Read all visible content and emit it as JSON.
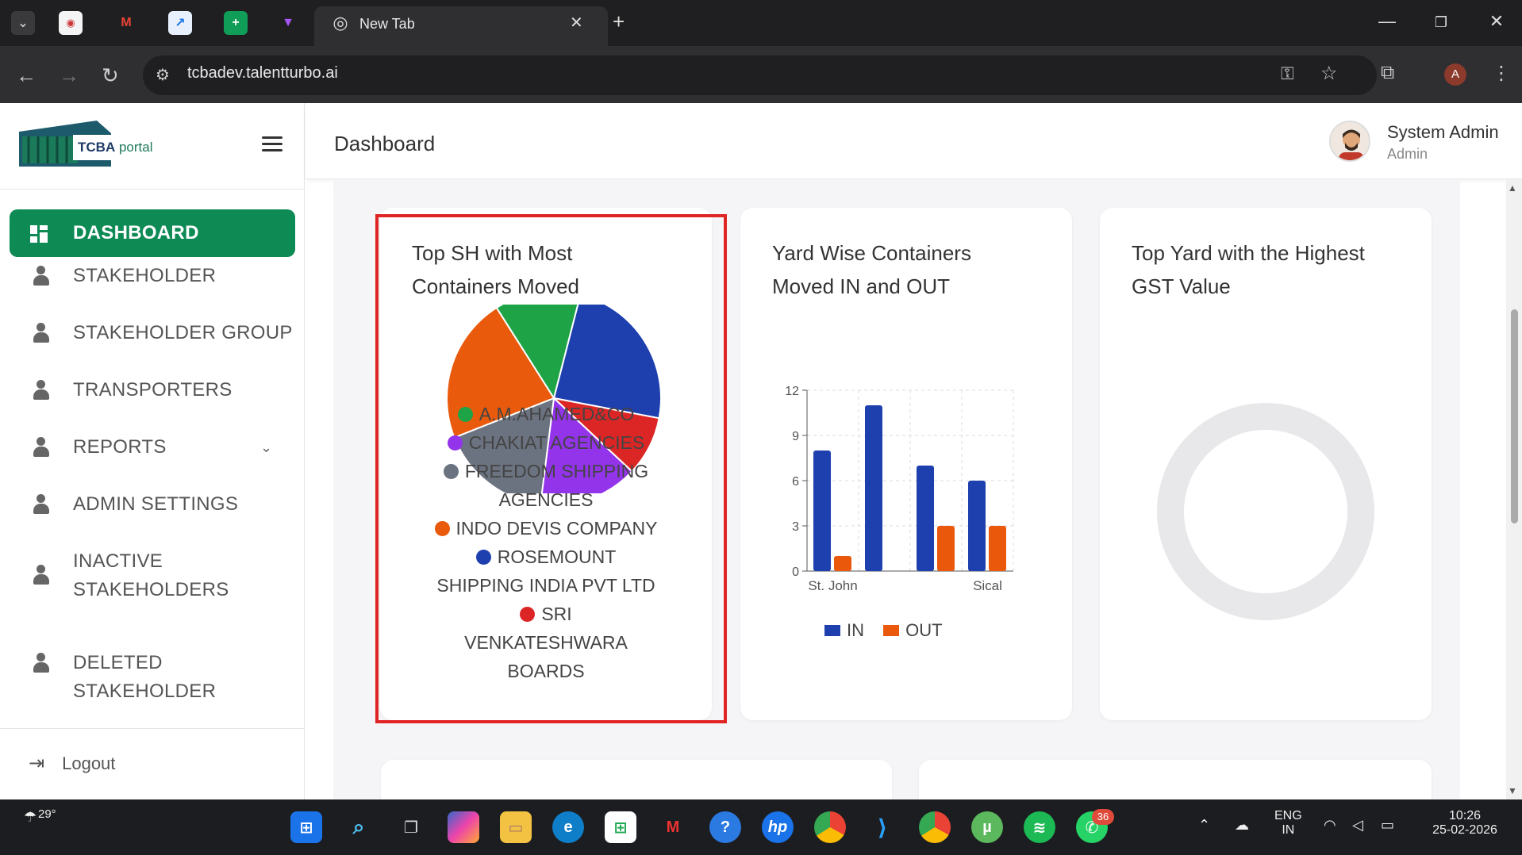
{
  "browser": {
    "active_tab_title": "New Tab",
    "url": "tcbadev.talentturbo.ai",
    "profile_initial": "A"
  },
  "sidebar": {
    "logo_text_bold": "TCBA",
    "logo_text": "portal",
    "items": [
      {
        "label": "DASHBOARD"
      },
      {
        "label": "STAKEHOLDER"
      },
      {
        "label": "STAKEHOLDER GROUP"
      },
      {
        "label": "TRANSPORTERS"
      },
      {
        "label": "REPORTS"
      },
      {
        "label": "ADMIN SETTINGS"
      },
      {
        "label": "INACTIVE STAKEHOLDERS"
      },
      {
        "label": "DELETED STAKEHOLDER"
      }
    ],
    "logout": "Logout"
  },
  "header": {
    "title": "Dashboard",
    "user_name": "System Admin",
    "user_role": "Admin"
  },
  "cards": {
    "sh_title": "Top SH with Most Containers Moved",
    "yard_title": "Yard Wise Containers Moved IN and OUT",
    "gst_title": "Top Yard with the Highest GST Value"
  },
  "chart_data": [
    {
      "type": "pie",
      "title": "Top SH with Most Containers Moved",
      "labels": [
        "A.M.AHAMED&CO",
        "CHAKIAT AGENCIES",
        "FREEDOM SHIPPING AGENCIES",
        "INDO DEVIS COMPANY",
        "ROSEMOUNT SHIPPING INDIA PVT LTD",
        "SRI VENKATESHWARA BOARDS"
      ],
      "values": [
        13,
        15,
        17,
        22,
        24,
        9
      ],
      "colors": [
        "#1ea446",
        "#9333ea",
        "#6b7280",
        "#ea5a0c",
        "#1e40af",
        "#dc2626"
      ]
    },
    {
      "type": "bar",
      "title": "Yard Wise Containers Moved IN and OUT",
      "categories": [
        "St. John",
        "",
        "",
        "Sical"
      ],
      "series": [
        {
          "name": "IN",
          "values": [
            8,
            11,
            7,
            6
          ],
          "color": "#1e40af"
        },
        {
          "name": "OUT",
          "values": [
            1,
            0,
            3,
            3
          ],
          "color": "#ea580c"
        }
      ],
      "yticks": [
        "0",
        "3",
        "6",
        "9",
        "12"
      ],
      "ylim": [
        0,
        12
      ]
    },
    {
      "type": "pie",
      "title": "Top Yard with the Highest GST Value",
      "labels": [],
      "values": []
    }
  ],
  "taskbar": {
    "weather": "29°",
    "lang1": "ENG",
    "lang2": "IN",
    "time": "10:26",
    "date": "25-02-2026",
    "whatsapp_badge": "36"
  }
}
